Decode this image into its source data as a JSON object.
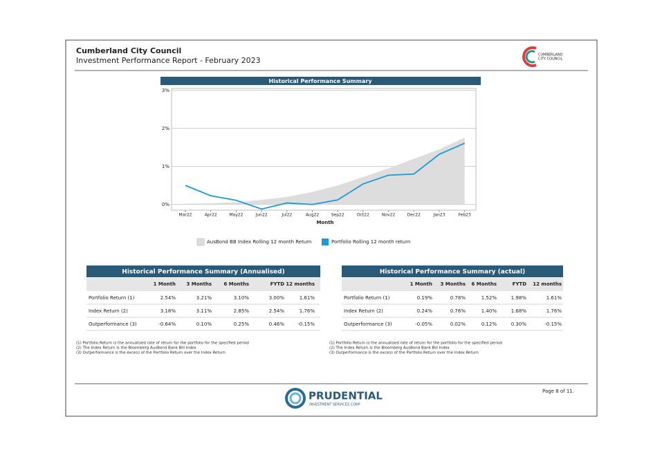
{
  "header": {
    "org": "Cumberland City Council",
    "title": "Investment Performance Report - February 2023"
  },
  "logo": {
    "line1": "CUMBERLAND",
    "line2": "CITY COUNCIL"
  },
  "chart_data": {
    "type": "line",
    "title": "Historical Performance Summary",
    "x_label": "Month",
    "categories": [
      "Mar22",
      "Apr22",
      "May22",
      "Jun22",
      "Jul22",
      "Aug22",
      "Sep22",
      "Oct22",
      "Nov22",
      "Dec22",
      "Jan23",
      "Feb23"
    ],
    "series": [
      {
        "name": "AusBond BB Index Rolling 12 month Return",
        "color": "#dddddd",
        "style": "area",
        "values": [
          0.02,
          0.03,
          0.06,
          0.12,
          0.2,
          0.33,
          0.5,
          0.72,
          0.95,
          1.2,
          1.45,
          1.76
        ]
      },
      {
        "name": "Portfolio Rolling 12 month return",
        "color": "#1a9ad6",
        "style": "line",
        "values": [
          0.5,
          0.23,
          0.11,
          -0.12,
          0.04,
          0.0,
          0.12,
          0.54,
          0.77,
          0.8,
          1.32,
          1.61
        ]
      }
    ],
    "ylim": [
      -0.15,
      3.05
    ],
    "yticks": [
      {
        "value": 0,
        "label": "0%"
      },
      {
        "value": 1,
        "label": "1%"
      },
      {
        "value": 2,
        "label": "2%"
      },
      {
        "value": 3,
        "label": "3%"
      }
    ],
    "grid": true
  },
  "tables": [
    {
      "title": "Historical Performance Summary (Annualised)",
      "columns": [
        "1 Month",
        "3 Months",
        "6 Months",
        "FYTD",
        "12 months"
      ],
      "rows": [
        {
          "label": "Portfolio Return (1)",
          "cells": [
            "2.54%",
            "3.21%",
            "3.10%",
            "3.00%",
            "1.61%"
          ]
        },
        {
          "label": "Index Return (2)",
          "cells": [
            "3.18%",
            "3.11%",
            "2.85%",
            "2.54%",
            "1.76%"
          ]
        },
        {
          "label": "Outperformance (3)",
          "cells": [
            "-0.64%",
            "0.10%",
            "0.25%",
            "0.46%",
            "-0.15%"
          ]
        }
      ],
      "notes": [
        "(1) Portfolio Return is the annualised rate of return for the portfolio for the specified period",
        "(2) The Index Return is the Bloomberg AusBond Bank Bill Index",
        "(3) Outperformance is the excess of the Portfolio Return over the Index Return"
      ]
    },
    {
      "title": "Historical Performance Summary (actual)",
      "columns": [
        "1 Month",
        "3 Months",
        "6 Months",
        "FYTD",
        "12 months"
      ],
      "rows": [
        {
          "label": "Portfolio Return (1)",
          "cells": [
            "0.19%",
            "0.78%",
            "1.52%",
            "1.98%",
            "1.61%"
          ]
        },
        {
          "label": "Index Return (2)",
          "cells": [
            "0.24%",
            "0.76%",
            "1.40%",
            "1.68%",
            "1.76%"
          ]
        },
        {
          "label": "Outperformance (3)",
          "cells": [
            "-0.05%",
            "0.02%",
            "0.12%",
            "0.30%",
            "-0.15%"
          ]
        }
      ],
      "notes": [
        "(1) Portfolio Return is the annualised rate of return for the portfolio for the specified period",
        "(2) The Index Return is the Bloomberg AusBond Bank Bill Index",
        "(3) Outperformance is the excess of the Portfolio Return over the Index Return"
      ]
    }
  ],
  "footer": {
    "brand": "PRUDENTIAL",
    "sub": "INVESTMENT SERVICES CORP",
    "page": "Page 8 of 11."
  }
}
